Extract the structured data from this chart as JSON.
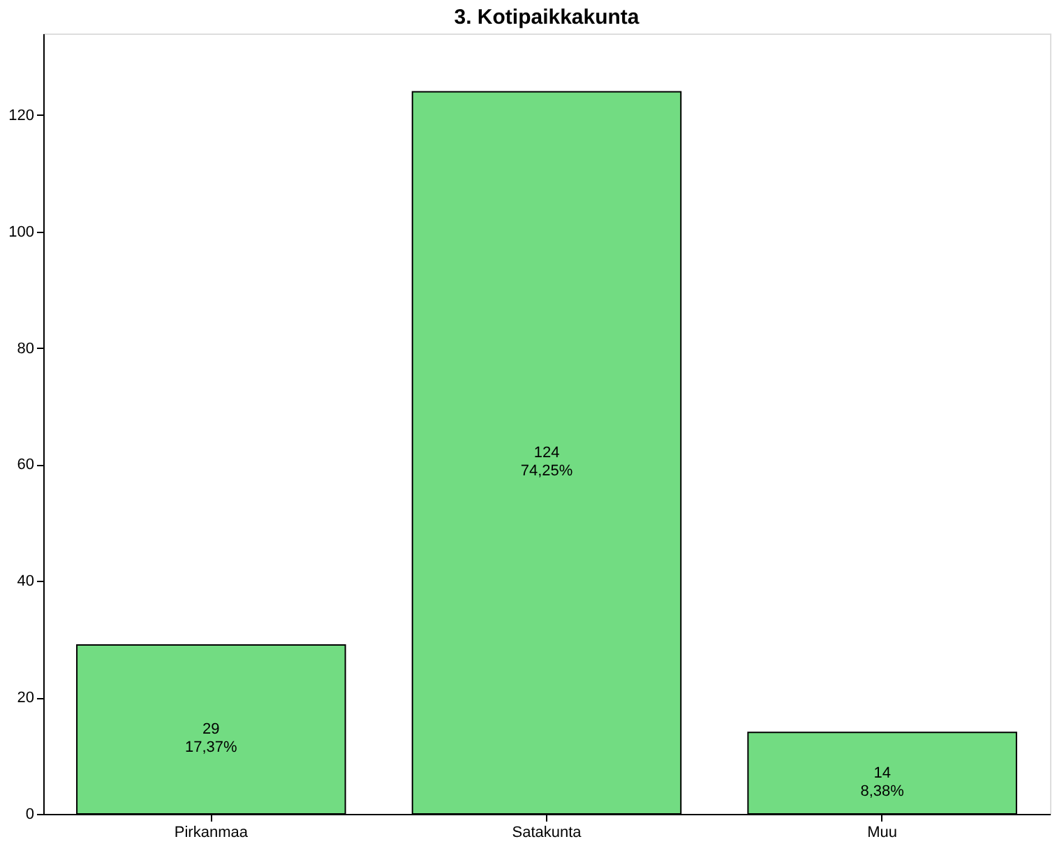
{
  "chart_data": {
    "type": "bar",
    "title": "3. Kotipaikkakunta",
    "categories": [
      "Pirkanmaa",
      "Satakunta",
      "Muu"
    ],
    "values": [
      29,
      124,
      14
    ],
    "color": "#72dc82",
    "value_labels": [
      "29\n17,37%",
      "124\n74,25%",
      "14\n8,38%"
    ],
    "ylim": [
      0,
      134
    ],
    "yticks": [
      0,
      20,
      40,
      60,
      80,
      100,
      120
    ],
    "grid": false
  }
}
